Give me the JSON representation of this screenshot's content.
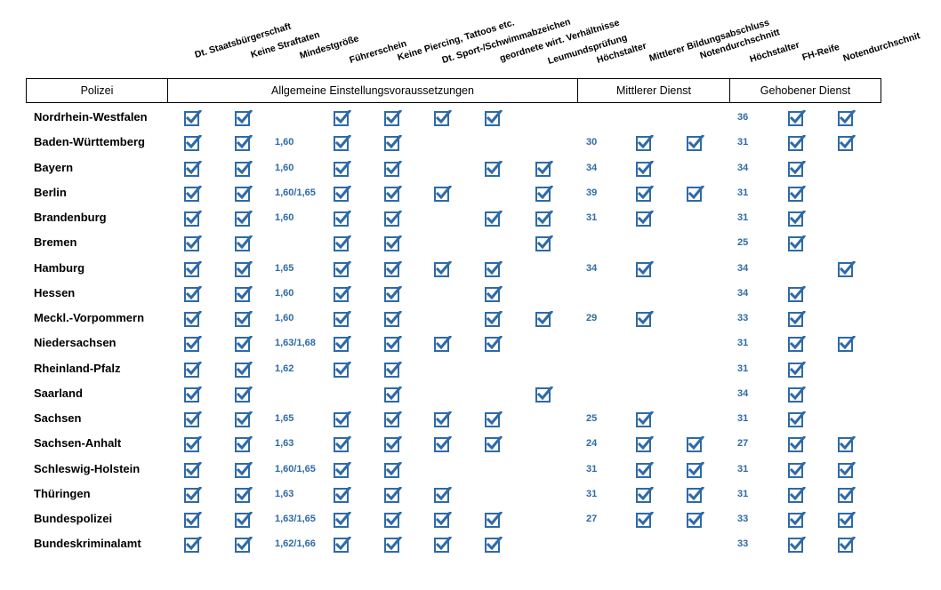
{
  "group_headers": [
    "Polizei",
    "Allgemeine Einstellungsvoraussetzungen",
    "Mittlerer Dienst",
    "Gehobener Dienst"
  ],
  "column_headers": [
    "Dt. Staatsbürgerschaft",
    "Keine Straftaten",
    "Mindestgröße",
    "Führerschein",
    "Keine Piercing, Tattoos etc.",
    "Dt. Sport-/Schwimmabzeichen",
    "geordnete wirt. Verhältnisse",
    "Leumundsprüfung",
    "Höchstalter",
    "Mittlerer Bildungsabschluss",
    "Notendurchschnitt",
    "Höchstalter",
    "FH-Reife",
    "Notendurchschnit"
  ],
  "rows": [
    {
      "name": "Nordrhein-Westfalen",
      "staatsb": true,
      "straftaten": true,
      "groesse": "",
      "fuehrer": true,
      "piercing": true,
      "sport": true,
      "finanzen": true,
      "leumund": false,
      "md_alter": "",
      "md_bildung": false,
      "md_noten": false,
      "gd_alter": "36",
      "gd_fh": true,
      "gd_noten": true
    },
    {
      "name": "Baden-Württemberg",
      "staatsb": true,
      "straftaten": true,
      "groesse": "1,60",
      "fuehrer": true,
      "piercing": true,
      "sport": false,
      "finanzen": false,
      "leumund": false,
      "md_alter": "30",
      "md_bildung": true,
      "md_noten": true,
      "gd_alter": "31",
      "gd_fh": true,
      "gd_noten": true
    },
    {
      "name": "Bayern",
      "staatsb": true,
      "straftaten": true,
      "groesse": "1,60",
      "fuehrer": true,
      "piercing": true,
      "sport": false,
      "finanzen": true,
      "leumund": true,
      "md_alter": "34",
      "md_bildung": true,
      "md_noten": false,
      "gd_alter": "34",
      "gd_fh": true,
      "gd_noten": false
    },
    {
      "name": "Berlin",
      "staatsb": true,
      "straftaten": true,
      "groesse": "1,60/1,65",
      "fuehrer": true,
      "piercing": true,
      "sport": true,
      "finanzen": false,
      "leumund": true,
      "md_alter": "39",
      "md_bildung": true,
      "md_noten": true,
      "gd_alter": "31",
      "gd_fh": true,
      "gd_noten": false
    },
    {
      "name": "Brandenburg",
      "staatsb": true,
      "straftaten": true,
      "groesse": "1,60",
      "fuehrer": true,
      "piercing": true,
      "sport": false,
      "finanzen": true,
      "leumund": true,
      "md_alter": "31",
      "md_bildung": true,
      "md_noten": false,
      "gd_alter": "31",
      "gd_fh": true,
      "gd_noten": false
    },
    {
      "name": "Bremen",
      "staatsb": true,
      "straftaten": true,
      "groesse": "",
      "fuehrer": true,
      "piercing": true,
      "sport": false,
      "finanzen": false,
      "leumund": true,
      "md_alter": "",
      "md_bildung": false,
      "md_noten": false,
      "gd_alter": "25",
      "gd_fh": true,
      "gd_noten": false
    },
    {
      "name": "Hamburg",
      "staatsb": true,
      "straftaten": true,
      "groesse": "1,65",
      "fuehrer": true,
      "piercing": true,
      "sport": true,
      "finanzen": true,
      "leumund": false,
      "md_alter": "34",
      "md_bildung": true,
      "md_noten": false,
      "gd_alter": "34",
      "gd_fh": false,
      "gd_noten": true
    },
    {
      "name": "Hessen",
      "staatsb": true,
      "straftaten": true,
      "groesse": "1,60",
      "fuehrer": true,
      "piercing": true,
      "sport": false,
      "finanzen": true,
      "leumund": false,
      "md_alter": "",
      "md_bildung": false,
      "md_noten": false,
      "gd_alter": "34",
      "gd_fh": true,
      "gd_noten": false
    },
    {
      "name": "Meckl.-Vorpommern",
      "staatsb": true,
      "straftaten": true,
      "groesse": "1,60",
      "fuehrer": true,
      "piercing": true,
      "sport": false,
      "finanzen": true,
      "leumund": true,
      "md_alter": "29",
      "md_bildung": true,
      "md_noten": false,
      "gd_alter": "33",
      "gd_fh": true,
      "gd_noten": false
    },
    {
      "name": "Niedersachsen",
      "staatsb": true,
      "straftaten": true,
      "groesse": "1,63/1,68",
      "fuehrer": true,
      "piercing": true,
      "sport": true,
      "finanzen": true,
      "leumund": false,
      "md_alter": "",
      "md_bildung": false,
      "md_noten": false,
      "gd_alter": "31",
      "gd_fh": true,
      "gd_noten": true
    },
    {
      "name": "Rheinland-Pfalz",
      "staatsb": true,
      "straftaten": true,
      "groesse": "1,62",
      "fuehrer": true,
      "piercing": true,
      "sport": false,
      "finanzen": false,
      "leumund": false,
      "md_alter": "",
      "md_bildung": false,
      "md_noten": false,
      "gd_alter": "31",
      "gd_fh": true,
      "gd_noten": false
    },
    {
      "name": "Saarland",
      "staatsb": true,
      "straftaten": true,
      "groesse": "",
      "fuehrer": false,
      "piercing": true,
      "sport": false,
      "finanzen": false,
      "leumund": true,
      "md_alter": "",
      "md_bildung": false,
      "md_noten": false,
      "gd_alter": "34",
      "gd_fh": true,
      "gd_noten": false
    },
    {
      "name": "Sachsen",
      "staatsb": true,
      "straftaten": true,
      "groesse": "1,65",
      "fuehrer": true,
      "piercing": true,
      "sport": true,
      "finanzen": true,
      "leumund": false,
      "md_alter": "25",
      "md_bildung": true,
      "md_noten": false,
      "gd_alter": "31",
      "gd_fh": true,
      "gd_noten": false
    },
    {
      "name": "Sachsen-Anhalt",
      "staatsb": true,
      "straftaten": true,
      "groesse": "1,63",
      "fuehrer": true,
      "piercing": true,
      "sport": true,
      "finanzen": true,
      "leumund": false,
      "md_alter": "24",
      "md_bildung": true,
      "md_noten": true,
      "gd_alter": "27",
      "gd_fh": true,
      "gd_noten": true
    },
    {
      "name": "Schleswig-Holstein",
      "staatsb": true,
      "straftaten": true,
      "groesse": "1,60/1,65",
      "fuehrer": true,
      "piercing": true,
      "sport": false,
      "finanzen": false,
      "leumund": false,
      "md_alter": "31",
      "md_bildung": true,
      "md_noten": true,
      "gd_alter": "31",
      "gd_fh": true,
      "gd_noten": true
    },
    {
      "name": "Thüringen",
      "staatsb": true,
      "straftaten": true,
      "groesse": "1,63",
      "fuehrer": true,
      "piercing": true,
      "sport": true,
      "finanzen": false,
      "leumund": false,
      "md_alter": "31",
      "md_bildung": true,
      "md_noten": true,
      "gd_alter": "31",
      "gd_fh": true,
      "gd_noten": true
    },
    {
      "name": "Bundespolizei",
      "staatsb": true,
      "straftaten": true,
      "groesse": "1,63/1,65",
      "fuehrer": true,
      "piercing": true,
      "sport": true,
      "finanzen": true,
      "leumund": false,
      "md_alter": "27",
      "md_bildung": true,
      "md_noten": true,
      "gd_alter": "33",
      "gd_fh": true,
      "gd_noten": true
    },
    {
      "name": "Bundeskriminalamt",
      "staatsb": true,
      "straftaten": true,
      "groesse": "1,62/1,66",
      "fuehrer": true,
      "piercing": true,
      "sport": true,
      "finanzen": true,
      "leumund": false,
      "md_alter": "",
      "md_bildung": false,
      "md_noten": false,
      "gd_alter": "33",
      "gd_fh": true,
      "gd_noten": true
    }
  ],
  "colors": {
    "checkbox": "#2e6aa8",
    "number": "#2e6aa8"
  },
  "icons": {
    "check": "checkbox-checked-icon"
  }
}
